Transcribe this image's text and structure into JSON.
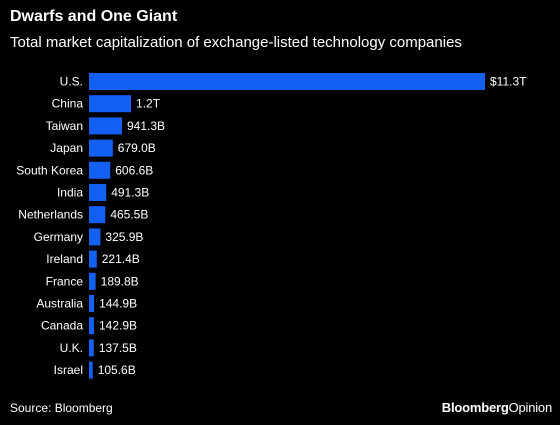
{
  "header": {
    "title": "Dwarfs and One Giant",
    "subtitle": "Total market capitalization of exchange-listed technology companies"
  },
  "footer": {
    "source": "Source: Bloomberg",
    "brand_primary": "Bloomberg",
    "brand_secondary": "Opinion"
  },
  "colors": {
    "background": "#000000",
    "bar": "#1560f4",
    "text": "#ffffff"
  },
  "chart_data": {
    "type": "bar",
    "orientation": "horizontal",
    "title": "Dwarfs and One Giant",
    "subtitle": "Total market capitalization of exchange-listed technology companies",
    "unit": "USD",
    "categories": [
      "U.S.",
      "China",
      "Taiwan",
      "Japan",
      "South Korea",
      "India",
      "Netherlands",
      "Germany",
      "Ireland",
      "France",
      "Australia",
      "Canada",
      "U.K.",
      "Israel"
    ],
    "values": [
      11300,
      1200,
      941.3,
      679.0,
      606.6,
      491.3,
      465.5,
      325.9,
      221.4,
      189.8,
      144.9,
      142.9,
      137.5,
      105.6
    ],
    "value_units": "billions of USD",
    "data_labels": [
      "$11.3T",
      "1.2T",
      "941.3B",
      "679.0B",
      "606.6B",
      "491.3B",
      "465.5B",
      "325.9B",
      "221.4B",
      "189.8B",
      "144.9B",
      "142.9B",
      "137.5B",
      "105.6B"
    ],
    "grid": false,
    "legend": "none"
  }
}
